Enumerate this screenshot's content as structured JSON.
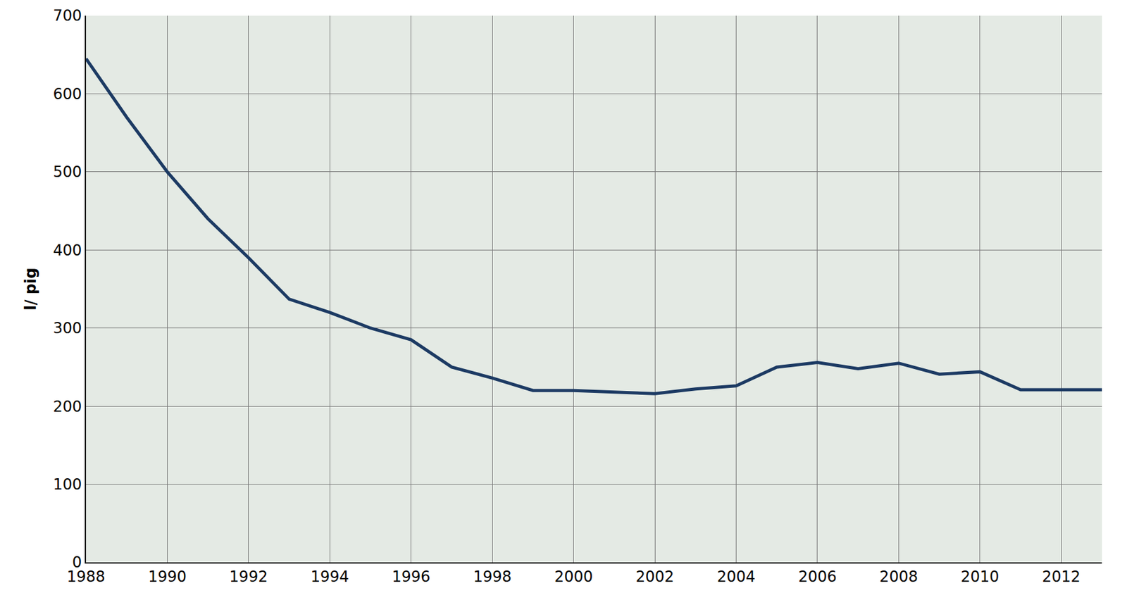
{
  "chart_data": {
    "type": "line",
    "y_label": "l/ pig",
    "x": [
      1988,
      1989,
      1990,
      1991,
      1992,
      1993,
      1994,
      1995,
      1996,
      1997,
      1998,
      1999,
      2000,
      2001,
      2002,
      2003,
      2004,
      2005,
      2006,
      2007,
      2008,
      2009,
      2010,
      2011,
      2012,
      2013
    ],
    "values": [
      645,
      570,
      500,
      440,
      390,
      337,
      320,
      300,
      285,
      250,
      236,
      220,
      220,
      218,
      216,
      222,
      226,
      250,
      256,
      248,
      255,
      241,
      244,
      221,
      221,
      221
    ],
    "color": "#1c3a63",
    "xlim": [
      1988,
      2013
    ],
    "xticks": [
      1988,
      1990,
      1992,
      1994,
      1996,
      1998,
      2000,
      2002,
      2004,
      2006,
      2008,
      2010,
      2012
    ],
    "ylim": [
      0,
      700
    ],
    "yticks": [
      0,
      100,
      200,
      300,
      400,
      500,
      600,
      700
    ],
    "grid": true
  }
}
